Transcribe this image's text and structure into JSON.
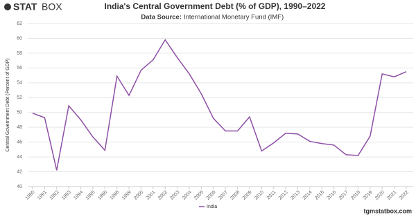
{
  "logo": {
    "bold": "STAT",
    "light": "BOX"
  },
  "footer": "tgmstatbox.com",
  "chart_data": {
    "type": "line",
    "title": "India's Central Government Debt (% of GDP), 1990–2022",
    "subtitle_label": "Data Source:",
    "subtitle": "International Monetary Fund (IMF)",
    "y_label": "Central Government Debt (Percent of GDP)",
    "categories": [
      "1990",
      "1991",
      "1992",
      "1993",
      "1994",
      "1995",
      "1996",
      "1998",
      "1999",
      "2000",
      "2001",
      "2002",
      "2003",
      "2004",
      "2005",
      "2006",
      "2007",
      "2008",
      "2009",
      "2010",
      "2011",
      "2012",
      "2013",
      "2014",
      "2015",
      "2016",
      "2017",
      "2018",
      "2019",
      "2020",
      "2021",
      "2022"
    ],
    "series": [
      {
        "name": "India",
        "color": "#8e4fa6",
        "values": [
          49.9,
          49.3,
          42.2,
          50.9,
          49.0,
          46.7,
          44.9,
          54.9,
          52.3,
          55.7,
          57.1,
          59.8,
          57.4,
          55.2,
          52.5,
          49.2,
          47.5,
          47.5,
          49.4,
          44.8,
          45.9,
          47.2,
          47.1,
          46.1,
          45.8,
          45.6,
          44.3,
          44.2,
          46.8,
          55.2,
          54.8,
          55.5
        ]
      }
    ],
    "ylim": [
      40,
      62
    ],
    "yticks": [
      40,
      42,
      44,
      46,
      48,
      50,
      52,
      54,
      56,
      58,
      60,
      62
    ],
    "grid": true
  }
}
